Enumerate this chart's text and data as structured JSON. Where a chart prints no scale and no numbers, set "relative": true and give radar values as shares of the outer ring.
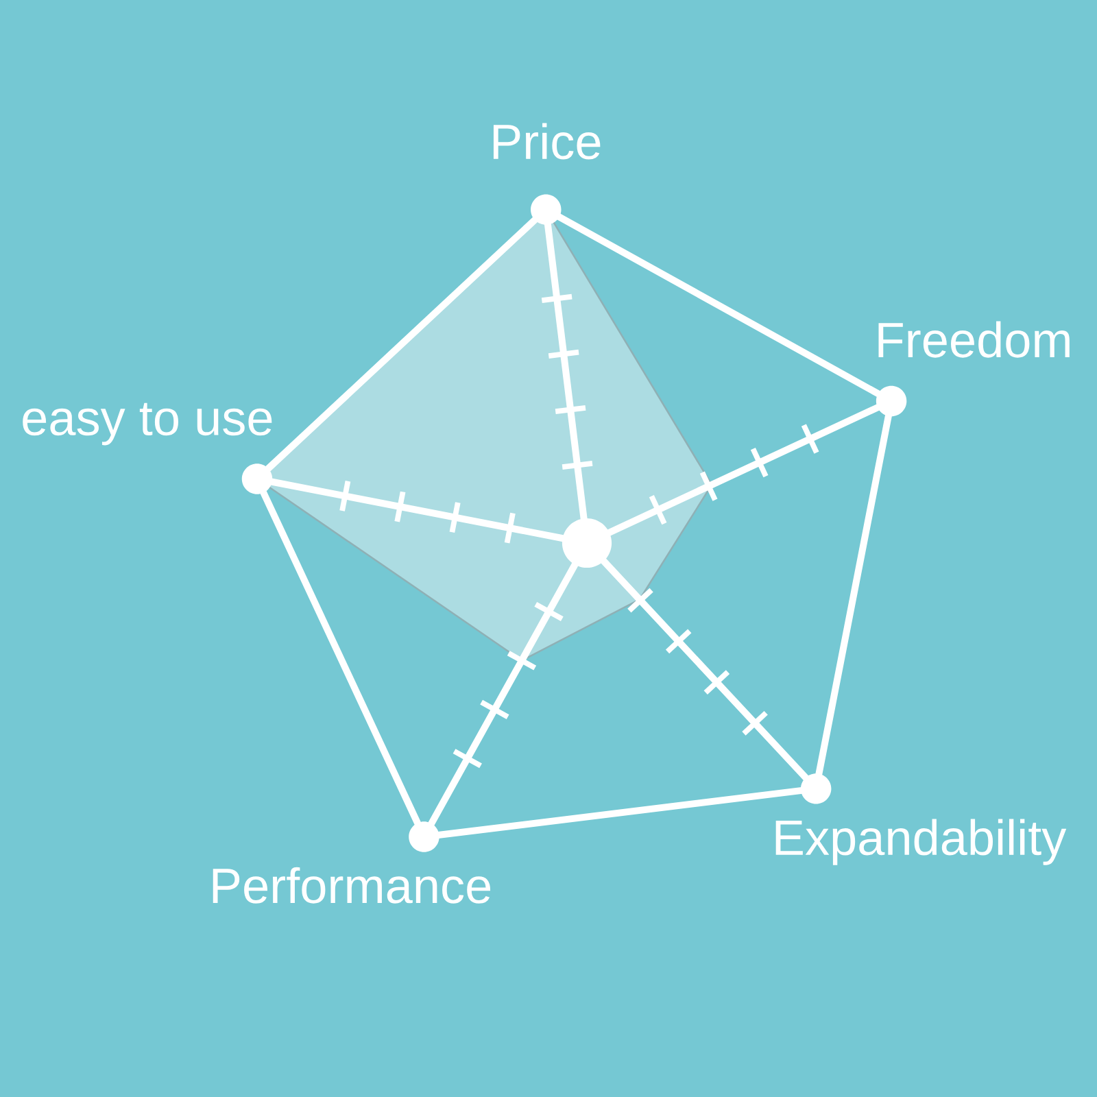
{
  "chart_data": {
    "type": "radar",
    "categories": [
      "Price",
      "Freedom",
      "Expandability",
      "Performance",
      "easy to use"
    ],
    "relative": true,
    "series": [
      {
        "color": "#acdce2",
        "values": [
          1,
          0.41,
          0.23,
          0.4,
          1
        ]
      }
    ]
  }
}
